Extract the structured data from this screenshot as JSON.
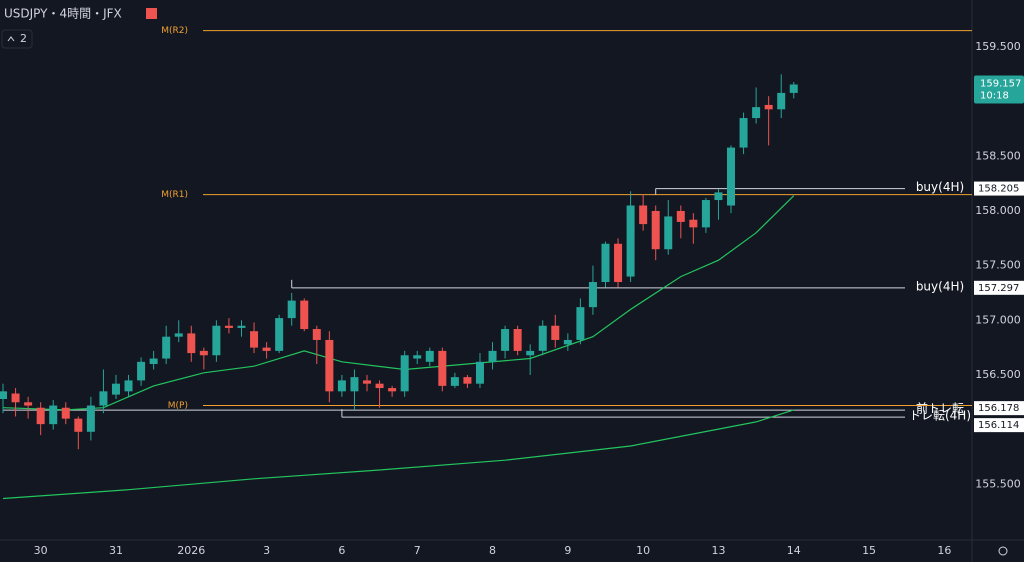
{
  "chart_data": {
    "type": "candlestick",
    "title": "USDJPY・4時間・JFX",
    "indicator_count": 2,
    "up_color": "#26a69a",
    "down_color": "#ef5350",
    "open": [
      156.28,
      156.33,
      156.25,
      156.2,
      156.05,
      156.2,
      156.1,
      155.98,
      156.22,
      156.32,
      156.35,
      156.45,
      156.6,
      156.65,
      156.85,
      156.88,
      156.72,
      156.68,
      156.95,
      156.93,
      156.9,
      156.75,
      156.72,
      157.02,
      157.18,
      156.92,
      156.82,
      156.35,
      156.35,
      156.45,
      156.42,
      156.38,
      156.35,
      156.65,
      156.62,
      156.72,
      156.4,
      156.48,
      156.42,
      156.62,
      156.72,
      156.92,
      156.68,
      156.72,
      156.95,
      156.78,
      156.82,
      157.12,
      157.35,
      157.7,
      157.4,
      158.05,
      158.0,
      157.65,
      158.0,
      157.92,
      157.85,
      158.1,
      158.05,
      158.58,
      158.85,
      158.97,
      158.93,
      159.08
    ],
    "high": [
      156.42,
      156.38,
      156.3,
      156.25,
      156.27,
      156.25,
      156.12,
      156.3,
      156.55,
      156.5,
      156.5,
      156.66,
      156.72,
      156.95,
      157.0,
      156.95,
      156.75,
      157.0,
      157.02,
      157.0,
      156.98,
      156.8,
      157.05,
      157.25,
      157.2,
      156.95,
      156.9,
      156.5,
      156.55,
      156.5,
      156.45,
      156.4,
      156.72,
      156.72,
      156.75,
      156.75,
      156.52,
      156.5,
      156.7,
      156.8,
      156.95,
      156.95,
      156.78,
      157.0,
      157.05,
      156.88,
      157.2,
      157.5,
      157.72,
      157.75,
      158.18,
      158.15,
      158.05,
      158.1,
      158.05,
      157.98,
      158.12,
      158.2,
      158.6,
      158.9,
      159.13,
      159.05,
      159.25,
      159.18
    ],
    "low": [
      156.15,
      156.12,
      156.1,
      155.95,
      156.0,
      156.05,
      155.82,
      155.9,
      156.15,
      156.28,
      156.3,
      156.4,
      156.55,
      156.6,
      156.8,
      156.62,
      156.55,
      156.62,
      156.88,
      156.85,
      156.7,
      156.65,
      156.7,
      156.95,
      156.9,
      156.6,
      156.25,
      156.3,
      156.18,
      156.35,
      156.2,
      156.3,
      156.3,
      156.6,
      156.58,
      156.35,
      156.38,
      156.38,
      156.38,
      156.55,
      156.65,
      156.68,
      156.5,
      156.68,
      156.75,
      156.72,
      156.78,
      157.05,
      157.3,
      157.3,
      157.35,
      157.82,
      157.55,
      157.6,
      157.75,
      157.7,
      157.8,
      157.92,
      157.98,
      158.52,
      158.8,
      158.6,
      158.85,
      159.03
    ],
    "close": [
      156.35,
      156.25,
      156.22,
      156.05,
      156.22,
      156.1,
      155.98,
      156.22,
      156.35,
      156.42,
      156.45,
      156.62,
      156.65,
      156.85,
      156.88,
      156.7,
      156.68,
      156.95,
      156.93,
      156.95,
      156.75,
      156.72,
      157.02,
      157.18,
      156.92,
      156.82,
      156.35,
      156.45,
      156.48,
      156.42,
      156.38,
      156.35,
      156.68,
      156.68,
      156.72,
      156.4,
      156.48,
      156.42,
      156.62,
      156.72,
      156.92,
      156.72,
      156.72,
      156.95,
      156.82,
      156.82,
      157.12,
      157.35,
      157.7,
      157.35,
      158.05,
      157.88,
      157.65,
      157.95,
      157.9,
      157.85,
      158.1,
      158.17,
      158.58,
      158.85,
      158.95,
      158.93,
      159.08,
      159.157
    ],
    "lines": [
      {
        "color": "#22c55e",
        "x": [
          0,
          10,
          20,
          30,
          40,
          50,
          60,
          63
        ],
        "values": [
          155.37,
          155.45,
          155.55,
          155.63,
          155.72,
          155.85,
          156.07,
          156.18
        ]
      },
      {
        "color": "#22c55e",
        "x": [
          0,
          5,
          8,
          12,
          16,
          20,
          24,
          27,
          32,
          37,
          42,
          47,
          50,
          54,
          57,
          60,
          63
        ],
        "values": [
          156.2,
          156.18,
          156.2,
          156.4,
          156.52,
          156.58,
          156.72,
          156.62,
          156.55,
          156.6,
          156.65,
          156.85,
          157.1,
          157.4,
          157.55,
          157.8,
          158.14
        ]
      }
    ],
    "levels": [
      {
        "label": "M(R2)",
        "value": 159.65,
        "color": "#f0a030",
        "tag": false
      },
      {
        "label": "M(R1)",
        "value": 158.15,
        "color": "#f0a030",
        "tag": false
      },
      {
        "label": "M(P)",
        "value": 156.22,
        "color": "#f0a030",
        "tag": false
      },
      {
        "label": "buy(4H)",
        "value": 158.205,
        "color": "#d1d4dc",
        "tag": true,
        "from": 52
      },
      {
        "label": "buy(4H)",
        "value": 157.297,
        "color": "#d1d4dc",
        "tag": true,
        "from": 23
      },
      {
        "label": "前トレ転",
        "value": 156.178,
        "color": "#d1d4dc",
        "tag": true,
        "from": 0
      },
      {
        "label": "トレ転(4H)",
        "value": 156.114,
        "color": "#d1d4dc",
        "tag": true,
        "from": 27
      }
    ],
    "last": {
      "value": 159.157,
      "time": "10:18"
    },
    "xlim": [
      -0.24,
      77.2
    ],
    "ylim": [
      154.99,
      159.93
    ],
    "yticks": [
      {
        "value": 159.5,
        "label": "159.500"
      },
      {
        "value": 158.5,
        "label": "158.500"
      },
      {
        "value": 158,
        "label": "158.000"
      },
      {
        "value": 157.5,
        "label": "157.500"
      },
      {
        "value": 157,
        "label": "157.000"
      },
      {
        "value": 156.5,
        "label": "156.500"
      },
      {
        "value": 155.5,
        "label": "155.500"
      }
    ],
    "xticks": [
      {
        "value": 3,
        "label": "30"
      },
      {
        "value": 9,
        "label": "31"
      },
      {
        "value": 15,
        "label": "2026"
      },
      {
        "value": 21,
        "label": "3"
      },
      {
        "value": 27,
        "label": "6"
      },
      {
        "value": 33,
        "label": "7"
      },
      {
        "value": 39,
        "label": "8"
      },
      {
        "value": 45,
        "label": "9"
      },
      {
        "value": 51,
        "label": "10"
      },
      {
        "value": 57,
        "label": "13"
      },
      {
        "value": 63,
        "label": "14"
      },
      {
        "value": 69,
        "label": "15"
      },
      {
        "value": 75,
        "label": "16"
      }
    ]
  }
}
